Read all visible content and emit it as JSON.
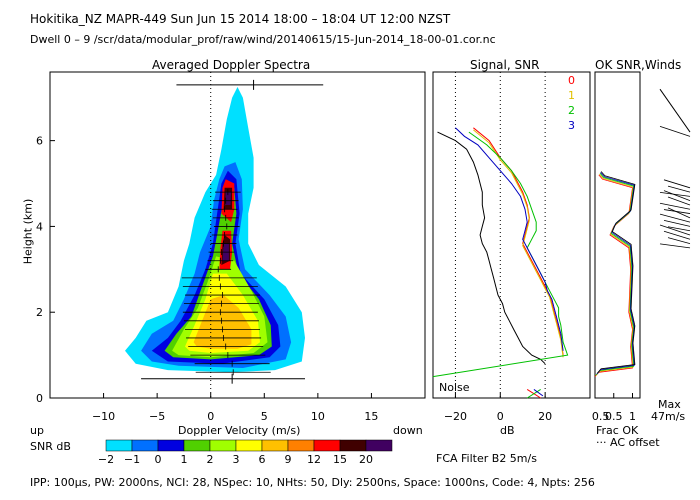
{
  "header": {
    "line1": "Hokitika_NZ   MAPR-449   Sun Jun 15 2014 18:00 – 18:04 UT 12:00 NZST",
    "line2": "Dwell   0 – 9    /scr/data/modular_prof/raw/wind/20140615/15-Jun-2014_18-00-01.cor.nc"
  },
  "footer": "IPP: 100μs,   PW: 2000ns,   NCI:  28,   NSpec: 10,  NHts: 50,   Dly: 2500ns,   Space: 1000ns,   Code: 4,   Npts: 256",
  "colors": {
    "snr0": "#ff0000",
    "snr1": "#e0c000",
    "snr2": "#00c000",
    "snr3": "#0000c0"
  },
  "chart_data": [
    {
      "type": "heatmap",
      "title": "Averaged Doppler Spectra",
      "xlabel": "Doppler Velocity (m/s)",
      "ylabel": "Height (km)",
      "xlim": [
        -15,
        20
      ],
      "ylim": [
        0,
        7.6
      ],
      "xticks": [
        -10,
        -5,
        0,
        5,
        10,
        15
      ],
      "yticks": [
        0,
        2,
        4,
        6
      ],
      "up_label": "up",
      "down_label": "down",
      "snr_label": "SNR dB",
      "snr_levels": [
        -2,
        -1,
        0,
        1,
        2,
        3,
        6,
        9,
        12,
        15,
        20
      ],
      "snr_level_labels": [
        "-2",
        "-1",
        "0",
        "1",
        "2",
        "3",
        "6",
        "9",
        "12",
        "15",
        "20"
      ],
      "snr_colors": [
        "#00e0ff",
        "#0070ff",
        "#0000e0",
        "#50d000",
        "#a0ff00",
        "#ffff00",
        "#ffc000",
        "#ff8000",
        "#ff0000",
        "#400000",
        "#400060"
      ],
      "mean_velocity": [
        [
          2.1,
          0.6
        ],
        [
          2.0,
          0.8
        ],
        [
          1.6,
          1.0
        ],
        [
          1.4,
          1.2
        ],
        [
          1.2,
          1.4
        ],
        [
          1.1,
          1.6
        ],
        [
          1.0,
          1.8
        ],
        [
          0.9,
          2.0
        ],
        [
          1.0,
          2.2
        ],
        [
          1.1,
          2.4
        ],
        [
          0.9,
          2.6
        ],
        [
          0.8,
          2.8
        ],
        [
          0.7,
          3.0
        ],
        [
          0.9,
          3.2
        ],
        [
          1.0,
          3.4
        ],
        [
          1.2,
          3.6
        ],
        [
          1.3,
          3.8
        ],
        [
          1.5,
          4.0
        ],
        [
          1.4,
          4.2
        ],
        [
          1.3,
          4.4
        ],
        [
          1.4,
          4.6
        ],
        [
          1.6,
          4.8
        ]
      ],
      "top_bar": {
        "height": 7.3,
        "from": -3.2,
        "to": 10.5,
        "mark": 4
      },
      "bottom_bar": {
        "height": 0.45,
        "from": -6.5,
        "to": 8.8,
        "mark": 2
      }
    },
    {
      "type": "line",
      "title": "Signal, SNR",
      "xlabel": "dB",
      "xlim": [
        -30,
        40
      ],
      "xticks": [
        -20,
        0,
        20
      ],
      "noise_label": "Noise",
      "legend": [
        "0",
        "1",
        "2",
        "3"
      ],
      "series": [
        {
          "name": "Signal",
          "color": "#000000",
          "x": [
            -28,
            -20,
            -15,
            -12,
            -10,
            -9,
            -8,
            -8,
            -7,
            -8,
            -9,
            -8,
            -6,
            -5,
            -4,
            -3,
            -2,
            -1,
            1,
            2,
            4,
            6,
            8,
            10,
            14,
            18,
            20
          ],
          "y": [
            6.2,
            6.0,
            5.8,
            5.5,
            5.2,
            5.0,
            4.8,
            4.5,
            4.2,
            4.0,
            3.8,
            3.6,
            3.4,
            3.2,
            3.0,
            2.8,
            2.6,
            2.4,
            2.2,
            2.0,
            1.8,
            1.6,
            1.4,
            1.2,
            1.0,
            0.9,
            0.8
          ]
        },
        {
          "name": "SNR 0",
          "color": "#ff0000",
          "x": [
            -12,
            -5,
            0,
            5,
            8,
            10,
            12,
            13,
            12,
            11,
            10,
            12,
            14,
            16,
            18,
            20,
            22,
            23,
            24,
            25,
            27,
            28
          ],
          "y": [
            6.3,
            6.0,
            5.6,
            5.3,
            5.0,
            4.8,
            4.5,
            4.2,
            4.0,
            3.8,
            3.6,
            3.4,
            3.2,
            3.0,
            2.8,
            2.6,
            2.4,
            2.2,
            2.0,
            1.8,
            1.4,
            1.0
          ]
        },
        {
          "name": "SNR 1",
          "color": "#e0c000",
          "x": [
            -12,
            -5,
            0,
            5,
            8,
            10,
            12,
            13,
            12,
            11,
            10,
            12,
            14,
            16,
            18,
            20,
            22,
            23,
            24,
            25,
            27,
            28
          ],
          "y": [
            6.25,
            5.95,
            5.55,
            5.25,
            4.95,
            4.75,
            4.45,
            4.15,
            3.95,
            3.75,
            3.55,
            3.35,
            3.15,
            2.95,
            2.75,
            2.55,
            2.35,
            2.15,
            1.95,
            1.75,
            1.35,
            0.95
          ]
        },
        {
          "name": "SNR 2",
          "color": "#00c000",
          "x": [
            -14,
            -6,
            0,
            5,
            9,
            12,
            14,
            16,
            16,
            14,
            12,
            14,
            16,
            18,
            20,
            22,
            24,
            26,
            26,
            27,
            28,
            30,
            -30
          ],
          "y": [
            6.2,
            5.9,
            5.6,
            5.3,
            5.0,
            4.7,
            4.4,
            4.1,
            3.9,
            3.7,
            3.5,
            3.3,
            3.1,
            2.9,
            2.7,
            2.5,
            2.3,
            2.1,
            1.9,
            1.7,
            1.3,
            1.0,
            0.5
          ]
        },
        {
          "name": "SNR 3",
          "color": "#0000c0",
          "x": [
            -20,
            -16,
            -10,
            -5,
            0,
            5,
            9,
            11,
            12,
            11,
            10,
            12,
            14,
            16,
            18,
            20,
            21,
            23,
            24,
            25,
            27,
            28
          ],
          "y": [
            6.3,
            6.1,
            5.9,
            5.6,
            5.3,
            5.0,
            4.7,
            4.4,
            4.1,
            3.9,
            3.7,
            3.5,
            3.3,
            3.1,
            2.9,
            2.7,
            2.5,
            2.3,
            2.1,
            1.9,
            1.5,
            1.1
          ]
        }
      ]
    },
    {
      "type": "line",
      "title": "OK SNR,Winds",
      "xlabel": "Frac OK",
      "xlim": [
        0,
        1.2
      ],
      "xticks": [
        0.5,
        1
      ],
      "extra_label": "0.5",
      "legend_label": "··· AC offset",
      "max_label_1": "Max",
      "max_label_2": "47m/s",
      "barbs_heights": [
        6.1,
        4.9,
        4.8,
        4.7,
        4.6,
        4.5,
        4.4,
        4.3,
        4.2,
        4.1,
        4.0,
        3.9,
        3.8,
        3.7,
        3.6,
        3.5
      ]
    }
  ]
}
